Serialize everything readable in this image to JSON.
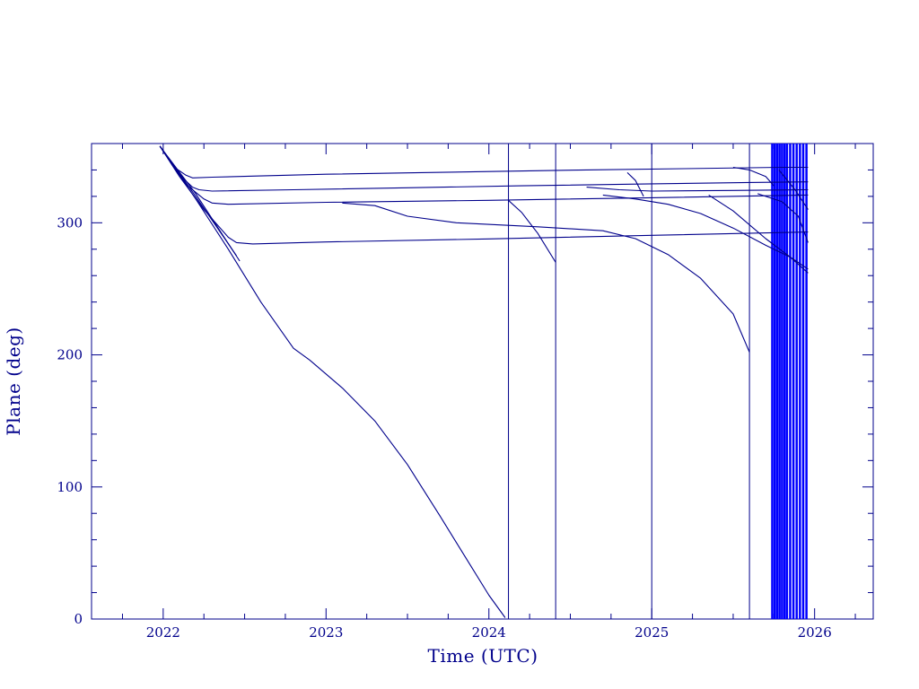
{
  "chart_data": {
    "type": "line",
    "title": "",
    "xlabel": "Time (UTC)",
    "ylabel": "Plane (deg)",
    "xlim": [
      2021.56,
      2026.36
    ],
    "ylim": [
      0,
      360
    ],
    "x_ticks": [
      2022,
      2023,
      2024,
      2025,
      2026
    ],
    "y_ticks": [
      0,
      100,
      200,
      300
    ],
    "x_tick_labels": [
      "2022",
      "2023",
      "2024",
      "2025",
      "2026"
    ],
    "y_tick_labels": [
      "0",
      "100",
      "200",
      "300"
    ],
    "grid": false,
    "color": "#00008b",
    "reentry_color": "#0000ff",
    "series": [
      {
        "x": [
          2021.98,
          2022.03,
          2022.08,
          2022.14,
          2022.18,
          2022.3,
          2022.6,
          2023.0,
          2023.5,
          2024.0,
          2024.6,
          2025.2,
          2025.8,
          2025.96
        ],
        "y": [
          358,
          349,
          341,
          336,
          334,
          334.5,
          335.5,
          336.8,
          337.8,
          338.8,
          340,
          341,
          342,
          342
        ]
      },
      {
        "x": [
          2021.98,
          2022.05,
          2022.12,
          2022.18,
          2022.22,
          2022.3,
          2022.8,
          2023.5,
          2024.2,
          2025.0,
          2025.6,
          2025.96
        ],
        "y": [
          358,
          345,
          334,
          327,
          325,
          324,
          325,
          326.5,
          328,
          329.5,
          330.5,
          331
        ]
      },
      {
        "x": [
          2021.98,
          2022.06,
          2022.15,
          2022.25,
          2022.3,
          2022.4,
          2023.0,
          2024.0,
          2025.0,
          2025.96
        ],
        "y": [
          358,
          343,
          328,
          318,
          315,
          314,
          315.5,
          317,
          319,
          321
        ]
      },
      {
        "x": [
          2021.98,
          2022.1,
          2022.25,
          2022.4,
          2022.45,
          2022.55,
          2023.0,
          2024.0,
          2025.0,
          2025.96
        ],
        "y": [
          358,
          335,
          310,
          289,
          285,
          284,
          285.5,
          287.8,
          290.5,
          293
        ]
      },
      {
        "x": [
          2021.98,
          2022.2,
          2022.47
        ],
        "y": [
          358,
          322,
          271
        ]
      },
      {
        "x": [
          2021.98,
          2022.2,
          2022.45
        ],
        "y": [
          358,
          320,
          275
        ]
      },
      {
        "x": [
          2021.98,
          2022.2,
          2022.4,
          2022.6,
          2022.8,
          2022.9,
          2023.1,
          2023.3,
          2023.5,
          2023.7,
          2023.85,
          2024.0,
          2024.1
        ],
        "y": [
          358,
          318,
          280,
          240,
          205,
          196,
          175,
          150,
          117,
          78,
          48,
          18,
          1
        ]
      },
      {
        "x": [
          2023.1,
          2023.3,
          2023.5,
          2023.8,
          2024.3,
          2024.7,
          2024.9,
          2025.1,
          2025.3,
          2025.5,
          2025.6
        ],
        "y": [
          315,
          313,
          305,
          300,
          297,
          294,
          288,
          276,
          258,
          231,
          202
        ]
      },
      {
        "x": [
          2024.12,
          2024.2,
          2024.3,
          2024.41
        ],
        "y": [
          317,
          308,
          292,
          270
        ]
      },
      {
        "x": [
          2024.7,
          2024.9,
          2025.1,
          2025.3,
          2025.5,
          2025.7,
          2025.85,
          2025.96
        ],
        "y": [
          321,
          318,
          314,
          307,
          296,
          283,
          274,
          265
        ]
      },
      {
        "x": [
          2025.35,
          2025.5,
          2025.7,
          2025.85,
          2025.96
        ],
        "y": [
          321,
          309,
          288,
          274,
          262
        ]
      },
      {
        "x": [
          2024.6,
          2024.8,
          2025.0,
          2025.5,
          2025.96
        ],
        "y": [
          327,
          325,
          324,
          324.5,
          325
        ]
      },
      {
        "x": [
          2024.85,
          2024.9,
          2024.95
        ],
        "y": [
          338,
          332,
          320
        ]
      },
      {
        "x": [
          2025.5,
          2025.6,
          2025.7,
          2025.75
        ],
        "y": [
          342,
          340,
          335,
          328
        ]
      },
      {
        "x": [
          2025.65,
          2025.8,
          2025.9,
          2025.96
        ],
        "y": [
          322,
          316,
          305,
          285
        ]
      },
      {
        "x": [
          2025.78,
          2025.88,
          2025.96
        ],
        "y": [
          340,
          325,
          310
        ]
      }
    ],
    "reentries": [
      2024.12,
      2024.41,
      2025.0,
      2025.6,
      2025.74,
      2025.755,
      2025.77,
      2025.785,
      2025.8,
      2025.815,
      2025.83,
      2025.85,
      2025.87,
      2025.89,
      2025.91,
      2025.93,
      2025.95
    ]
  }
}
